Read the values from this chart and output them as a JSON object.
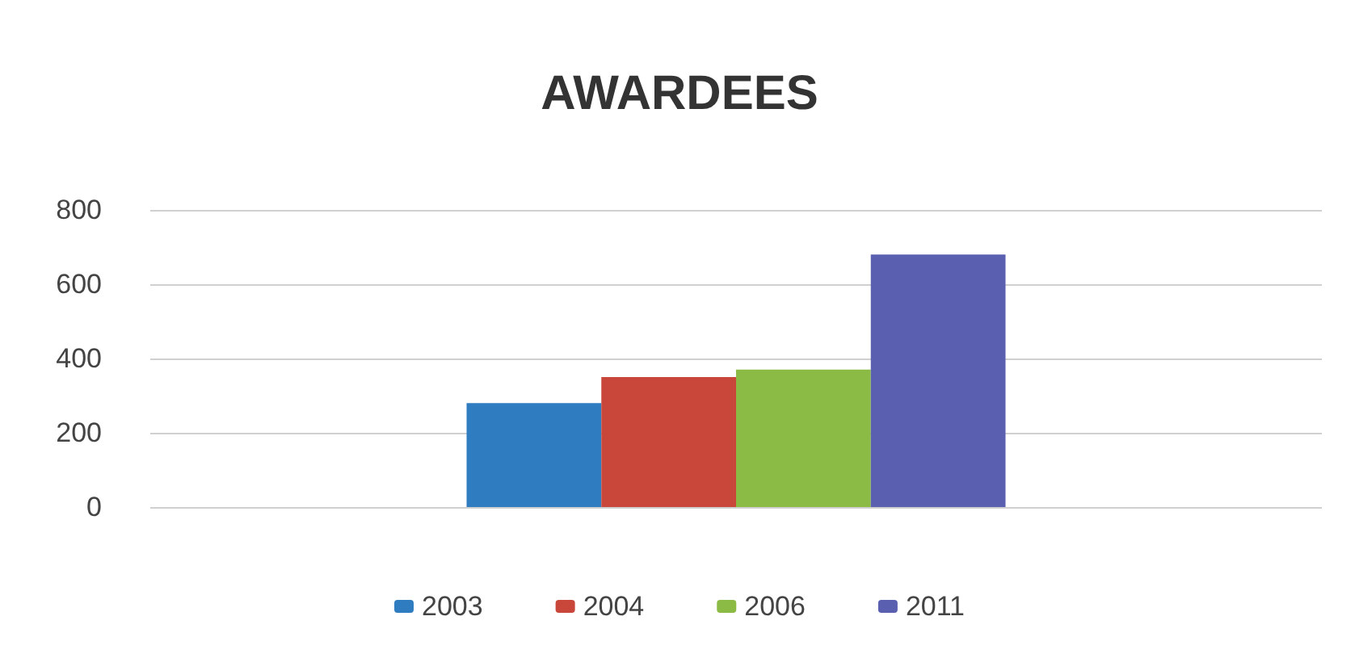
{
  "chart_data": {
    "type": "bar",
    "title": "AWARDEES",
    "categories": [
      null
    ],
    "series": [
      {
        "name": "2003",
        "color": "#2f7dc0",
        "values": [
          280
        ]
      },
      {
        "name": "2004",
        "color": "#c9473a",
        "values": [
          350
        ]
      },
      {
        "name": "2006",
        "color": "#8cbb45",
        "values": [
          370
        ]
      },
      {
        "name": "2011",
        "color": "#5a5fb0",
        "values": [
          680
        ]
      }
    ],
    "ylim": [
      0,
      800
    ],
    "yticks": [
      0,
      200,
      400,
      600,
      800
    ],
    "grid": "y",
    "legend": "bottom"
  }
}
